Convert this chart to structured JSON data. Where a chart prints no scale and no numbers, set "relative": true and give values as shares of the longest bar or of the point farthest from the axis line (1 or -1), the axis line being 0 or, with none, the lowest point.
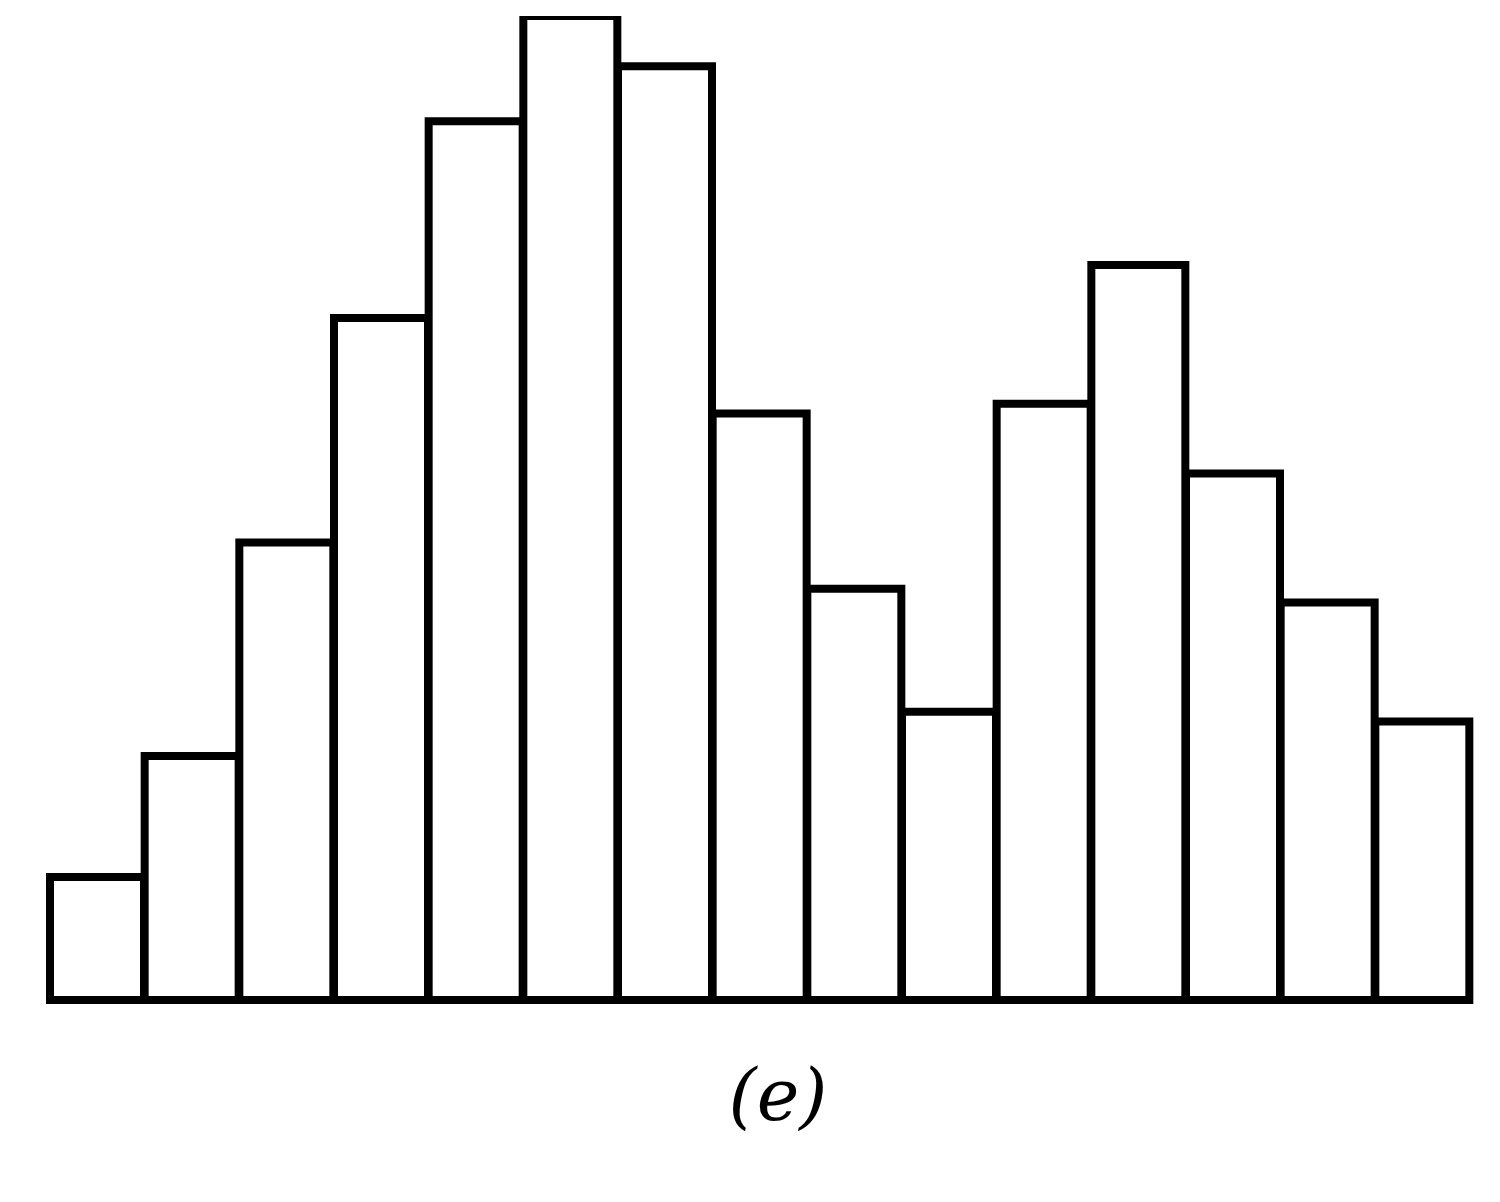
{
  "chart_data": {
    "type": "bar",
    "title": "(e)",
    "relative": true,
    "categories": [
      null,
      null,
      null,
      null,
      null,
      null,
      null,
      null,
      null,
      null,
      null,
      null,
      null,
      null,
      null
    ],
    "values": [
      0.125,
      0.248,
      0.465,
      0.693,
      0.893,
      1,
      0.949,
      0.596,
      0.418,
      0.293,
      0.606,
      0.747,
      0.535,
      0.404,
      0.283
    ],
    "color": "#ffffff"
  }
}
